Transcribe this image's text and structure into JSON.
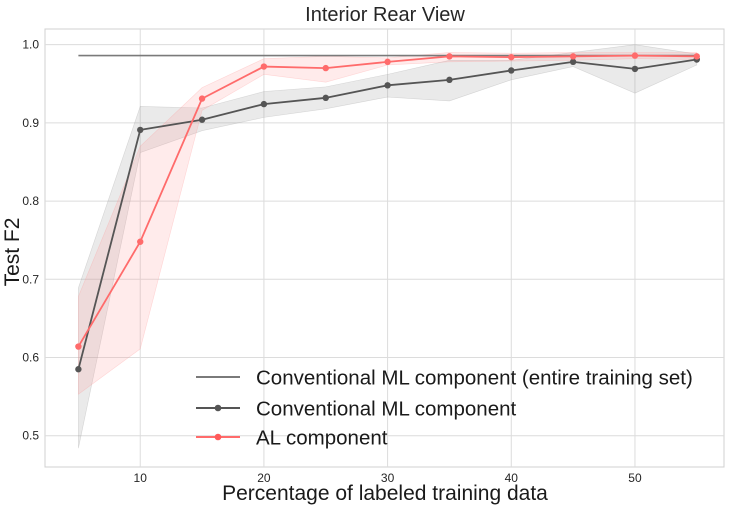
{
  "chart_data": {
    "type": "line",
    "title": "Interior Rear View",
    "xlabel": "Percentage of labeled training data",
    "ylabel": "Test F2",
    "xlim": [
      2.3,
      57.2
    ],
    "ylim": [
      0.46,
      1.02
    ],
    "xticks": [
      10,
      20,
      30,
      40,
      50
    ],
    "yticks": [
      0.5,
      0.6,
      0.7,
      0.8,
      0.9,
      1.0
    ],
    "ytick_labels": [
      "0.5",
      "0.6",
      "0.7",
      "0.8",
      "0.9",
      "1.0"
    ],
    "grid": true,
    "legend_position": "bottom-right",
    "series": [
      {
        "name": "Conventional ML component (entire training set)",
        "kind": "reference",
        "color": "#7a7a7a",
        "x": [
          5,
          55
        ],
        "values": [
          0.986,
          0.986
        ]
      },
      {
        "name": "Conventional ML component",
        "kind": "markers",
        "color": "#555555",
        "band_color": "#9e9e9e",
        "x": [
          5,
          10,
          15,
          20,
          25,
          30,
          35,
          40,
          45,
          50,
          55
        ],
        "values": [
          0.585,
          0.891,
          0.904,
          0.924,
          0.932,
          0.948,
          0.955,
          0.967,
          0.978,
          0.969,
          0.981
        ],
        "lower": [
          0.484,
          0.862,
          0.89,
          0.907,
          0.918,
          0.933,
          0.928,
          0.955,
          0.972,
          0.938,
          0.974
        ],
        "upper": [
          0.689,
          0.921,
          0.919,
          0.94,
          0.946,
          0.962,
          0.98,
          0.98,
          0.99,
          1.0,
          0.988
        ]
      },
      {
        "name": "AL component",
        "kind": "markers",
        "color": "#ff6b6b",
        "band_color": "#ff9a9a",
        "x": [
          5,
          10,
          15,
          20,
          25,
          30,
          35,
          40,
          45,
          50,
          55
        ],
        "values": [
          0.614,
          0.748,
          0.931,
          0.972,
          0.97,
          0.978,
          0.985,
          0.984,
          0.985,
          0.986,
          0.985
        ],
        "lower": [
          0.553,
          0.611,
          0.916,
          0.962,
          0.952,
          0.974,
          0.978,
          0.979,
          0.98,
          0.982,
          0.981
        ],
        "upper": [
          0.678,
          0.87,
          0.945,
          0.982,
          0.985,
          0.983,
          0.99,
          0.989,
          0.99,
          0.99,
          0.99
        ]
      }
    ]
  }
}
